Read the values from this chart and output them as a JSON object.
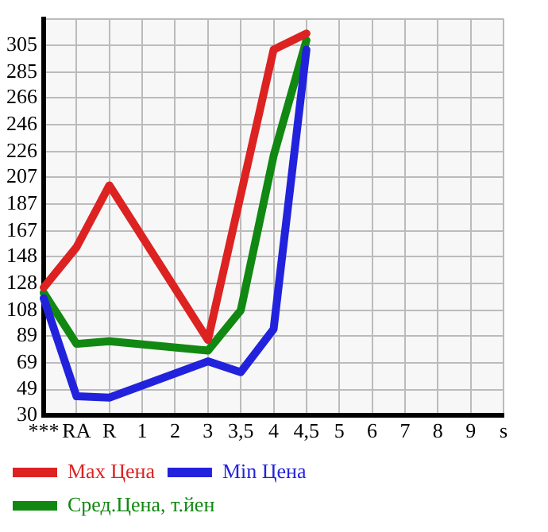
{
  "chart_data": {
    "type": "line",
    "categories": [
      "***",
      "RA",
      "R",
      "1",
      "2",
      "3",
      "3,5",
      "4",
      "4,5",
      "5",
      "6",
      "7",
      "8",
      "9",
      "s"
    ],
    "series": [
      {
        "name": "Max Цена",
        "color": "#dd2222",
        "values": [
          125,
          155,
          201,
          null,
          null,
          86,
          null,
          302,
          314,
          null,
          null,
          null,
          null,
          null,
          null
        ]
      },
      {
        "name": "Min Цена",
        "color": "#2222dd",
        "values": [
          117,
          44,
          43,
          null,
          null,
          70,
          62,
          94,
          302,
          null,
          null,
          null,
          null,
          null,
          null
        ]
      },
      {
        "name": "Сред.Цена, т.йен",
        "color": "#118811",
        "values": [
          121,
          83,
          85,
          null,
          null,
          78,
          108,
          223,
          309,
          null,
          null,
          null,
          null,
          null,
          null
        ]
      }
    ],
    "ylim": [
      30,
      325
    ],
    "yticks": [
      30,
      49,
      69,
      89,
      108,
      128,
      148,
      167,
      187,
      207,
      226,
      246,
      266,
      285,
      305,
      {
        "value": 325,
        "label": null
      }
    ],
    "grid": true,
    "legend": "bottom",
    "marker": "none",
    "line_style": "solid"
  }
}
